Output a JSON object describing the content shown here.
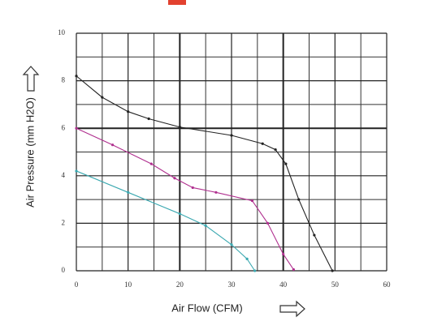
{
  "chart_data": {
    "type": "line",
    "x_label": "Air Flow (CFM)",
    "y_label": "Air Pressure (mm H2O)",
    "xlim": [
      0,
      60
    ],
    "xticks": [
      0,
      10,
      20,
      30,
      40,
      50,
      60
    ],
    "xminor": [
      5,
      15,
      25,
      35,
      45,
      55
    ],
    "ylim": [
      0,
      10
    ],
    "yticks": [
      0,
      2,
      4,
      6,
      8,
      10
    ],
    "yminor": [
      1,
      3,
      5,
      7,
      9
    ],
    "grid": true,
    "series": [
      {
        "color": "#222222",
        "x": [
          0,
          5,
          10,
          14,
          20,
          30,
          36,
          38.5,
          40.5,
          43,
          46,
          49.5
        ],
        "values": [
          8.2,
          7.3,
          6.7,
          6.4,
          6.05,
          5.7,
          5.35,
          5.1,
          4.5,
          3.0,
          1.5,
          0
        ]
      },
      {
        "color": "#b0308f",
        "x": [
          0,
          7,
          14.5,
          19,
          22.5,
          27,
          34,
          37,
          40,
          42
        ],
        "values": [
          6.0,
          5.3,
          4.5,
          3.9,
          3.5,
          3.3,
          2.95,
          2.0,
          0.7,
          0.05
        ]
      },
      {
        "color": "#3aa8b0",
        "x": [
          0,
          10,
          20,
          25,
          30,
          33,
          34.5
        ],
        "values": [
          4.2,
          3.3,
          2.4,
          1.9,
          1.1,
          0.5,
          0
        ]
      }
    ]
  }
}
